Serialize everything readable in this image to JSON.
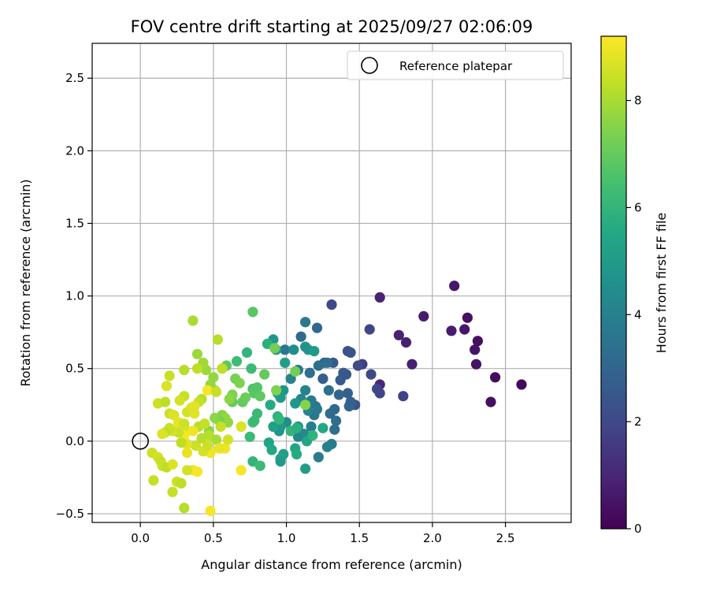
{
  "chart_data": {
    "type": "scatter",
    "title": "FOV centre drift starting at 2025/09/27 02:06:09",
    "xlabel": "Angular distance from reference (arcmin)",
    "ylabel": "Rotation from reference (arcmin)",
    "xlim": [
      -0.33,
      2.95
    ],
    "ylim": [
      -0.56,
      2.74
    ],
    "x_ticks": [
      "0.0",
      "0.5",
      "1.0",
      "1.5",
      "2.0",
      "2.5"
    ],
    "x_tick_values": [
      0,
      0.5,
      1.0,
      1.5,
      2.0,
      2.5
    ],
    "y_ticks": [
      "−0.5",
      "0.0",
      "0.5",
      "1.0",
      "1.5",
      "2.0",
      "2.5"
    ],
    "y_tick_values": [
      -0.5,
      0,
      0.5,
      1.0,
      1.5,
      2.0,
      2.5
    ],
    "grid": true,
    "colormap": "viridis",
    "colorbar": {
      "label": "Hours from first FF file",
      "range": [
        0,
        9.2
      ],
      "ticks": [
        "0",
        "2",
        "4",
        "6",
        "8"
      ],
      "tick_values": [
        0,
        2,
        4,
        6,
        8
      ]
    },
    "legend": {
      "placement": "top-right",
      "entries": [
        {
          "label": "Reference platepar",
          "marker": "open-circle"
        }
      ]
    },
    "reference_point": {
      "x": 0.0,
      "y": 0.0
    },
    "points": [
      {
        "x": 2.61,
        "y": 0.39,
        "h": 0.2
      },
      {
        "x": 2.43,
        "y": 0.44,
        "h": 0.3
      },
      {
        "x": 2.4,
        "y": 0.27,
        "h": 0.4
      },
      {
        "x": 2.31,
        "y": 0.69,
        "h": 0.4
      },
      {
        "x": 2.3,
        "y": 0.53,
        "h": 0.5
      },
      {
        "x": 2.29,
        "y": 0.63,
        "h": 0.5
      },
      {
        "x": 2.24,
        "y": 0.85,
        "h": 0.4
      },
      {
        "x": 2.22,
        "y": 0.77,
        "h": 0.6
      },
      {
        "x": 2.15,
        "y": 1.07,
        "h": 0.6
      },
      {
        "x": 2.13,
        "y": 0.76,
        "h": 0.7
      },
      {
        "x": 1.94,
        "y": 0.86,
        "h": 0.7
      },
      {
        "x": 1.86,
        "y": 0.53,
        "h": 0.8
      },
      {
        "x": 1.82,
        "y": 0.68,
        "h": 0.8
      },
      {
        "x": 1.77,
        "y": 0.73,
        "h": 0.9
      },
      {
        "x": 1.64,
        "y": 0.99,
        "h": 0.9
      },
      {
        "x": 1.64,
        "y": 0.39,
        "h": 1.0
      },
      {
        "x": 1.8,
        "y": 0.31,
        "h": 1.8
      },
      {
        "x": 1.64,
        "y": 0.33,
        "h": 1.9
      },
      {
        "x": 1.62,
        "y": 0.36,
        "h": 1.9
      },
      {
        "x": 1.57,
        "y": 0.77,
        "h": 1.9
      },
      {
        "x": 1.58,
        "y": 0.46,
        "h": 2.0
      },
      {
        "x": 1.52,
        "y": 0.53,
        "h": 1.7
      },
      {
        "x": 1.49,
        "y": 0.52,
        "h": 2.1
      },
      {
        "x": 1.47,
        "y": 0.25,
        "h": 2.3
      },
      {
        "x": 1.31,
        "y": 0.94,
        "h": 2.0
      },
      {
        "x": 1.42,
        "y": 0.62,
        "h": 2.4
      },
      {
        "x": 1.44,
        "y": 0.61,
        "h": 2.3
      },
      {
        "x": 1.37,
        "y": 0.42,
        "h": 2.6
      },
      {
        "x": 1.39,
        "y": 0.47,
        "h": 2.7
      },
      {
        "x": 1.41,
        "y": 0.46,
        "h": 2.5
      },
      {
        "x": 1.42,
        "y": 0.33,
        "h": 2.8
      },
      {
        "x": 1.43,
        "y": 0.24,
        "h": 3.0
      },
      {
        "x": 1.44,
        "y": 0.27,
        "h": 2.9
      },
      {
        "x": 1.36,
        "y": 0.32,
        "h": 3.0
      },
      {
        "x": 1.33,
        "y": 0.22,
        "h": 3.1
      },
      {
        "x": 1.34,
        "y": 0.14,
        "h": 3.3
      },
      {
        "x": 1.33,
        "y": 0.08,
        "h": 3.3
      },
      {
        "x": 1.3,
        "y": 0.19,
        "h": 3.2
      },
      {
        "x": 1.29,
        "y": 0.35,
        "h": 3.3
      },
      {
        "x": 1.32,
        "y": 0.54,
        "h": 2.6
      },
      {
        "x": 1.25,
        "y": 0.43,
        "h": 2.8
      },
      {
        "x": 1.26,
        "y": 0.54,
        "h": 2.9
      },
      {
        "x": 1.28,
        "y": 0.54,
        "h": 3.3
      },
      {
        "x": 1.22,
        "y": 0.52,
        "h": 3.4
      },
      {
        "x": 1.21,
        "y": 0.78,
        "h": 3.0
      },
      {
        "x": 1.13,
        "y": 0.82,
        "h": 3.7
      },
      {
        "x": 1.1,
        "y": 0.72,
        "h": 3.2
      },
      {
        "x": 1.2,
        "y": 0.24,
        "h": 3.5
      },
      {
        "x": 1.17,
        "y": 0.28,
        "h": 3.8
      },
      {
        "x": 1.19,
        "y": 0.18,
        "h": 3.6
      },
      {
        "x": 1.21,
        "y": 0.22,
        "h": 3.7
      },
      {
        "x": 1.17,
        "y": 0.1,
        "h": 3.9
      },
      {
        "x": 1.22,
        "y": -0.11,
        "h": 3.8
      },
      {
        "x": 1.31,
        "y": -0.02,
        "h": 3.7
      },
      {
        "x": 1.28,
        "y": -0.04,
        "h": 4.0
      },
      {
        "x": 1.13,
        "y": 0.35,
        "h": 4.1
      },
      {
        "x": 1.15,
        "y": 0.21,
        "h": 4.1
      },
      {
        "x": 1.12,
        "y": 0.05,
        "h": 4.3
      },
      {
        "x": 1.08,
        "y": 0.03,
        "h": 4.2
      },
      {
        "x": 1.16,
        "y": 0.47,
        "h": 3.3
      },
      {
        "x": 1.08,
        "y": 0.49,
        "h": 3.6
      },
      {
        "x": 1.1,
        "y": 0.29,
        "h": 4.2
      },
      {
        "x": 0.99,
        "y": 0.63,
        "h": 3.6
      },
      {
        "x": 1.05,
        "y": 0.63,
        "h": 4.5
      },
      {
        "x": 1.03,
        "y": 0.43,
        "h": 4.1
      },
      {
        "x": 1.0,
        "y": 0.13,
        "h": 4.4
      },
      {
        "x": 1.08,
        "y": 0.1,
        "h": 4.6
      },
      {
        "x": 1.06,
        "y": 0.26,
        "h": 4.8
      },
      {
        "x": 0.98,
        "y": 0.35,
        "h": 4.7
      },
      {
        "x": 0.93,
        "y": 0.63,
        "h": 4.9
      },
      {
        "x": 0.91,
        "y": 0.7,
        "h": 4.8
      },
      {
        "x": 1.13,
        "y": 0.65,
        "h": 4.7
      },
      {
        "x": 1.15,
        "y": 0.63,
        "h": 4.7
      },
      {
        "x": 1.19,
        "y": 0.62,
        "h": 5.0
      },
      {
        "x": 0.96,
        "y": 0.1,
        "h": 4.9
      },
      {
        "x": 0.95,
        "y": 0.07,
        "h": 4.8
      },
      {
        "x": 0.91,
        "y": 0.1,
        "h": 5.2
      },
      {
        "x": 0.94,
        "y": 0.33,
        "h": 5.0
      },
      {
        "x": 0.96,
        "y": 0.3,
        "h": 5.0
      },
      {
        "x": 0.99,
        "y": 0.54,
        "h": 5.1
      },
      {
        "x": 0.98,
        "y": -0.09,
        "h": 5.1
      },
      {
        "x": 0.96,
        "y": -0.12,
        "h": 5.3
      },
      {
        "x": 0.88,
        "y": -0.01,
        "h": 5.4
      },
      {
        "x": 0.96,
        "y": -0.14,
        "h": 5.0
      },
      {
        "x": 1.13,
        "y": -0.19,
        "h": 5.1
      },
      {
        "x": 1.06,
        "y": -0.05,
        "h": 5.4
      },
      {
        "x": 1.07,
        "y": -0.09,
        "h": 5.6
      },
      {
        "x": 1.14,
        "y": 0.0,
        "h": 5.4
      },
      {
        "x": 1.18,
        "y": 0.04,
        "h": 5.9
      },
      {
        "x": 1.25,
        "y": 0.09,
        "h": 5.5
      },
      {
        "x": 1.03,
        "y": 0.07,
        "h": 6.0
      },
      {
        "x": 1.07,
        "y": 0.09,
        "h": 5.8
      },
      {
        "x": 0.94,
        "y": 0.17,
        "h": 5.9
      },
      {
        "x": 0.95,
        "y": 0.15,
        "h": 6.0
      },
      {
        "x": 0.89,
        "y": 0.25,
        "h": 5.6
      },
      {
        "x": 0.87,
        "y": 0.67,
        "h": 5.8
      },
      {
        "x": 0.9,
        "y": -0.06,
        "h": 5.5
      },
      {
        "x": 0.77,
        "y": -0.14,
        "h": 6.0
      },
      {
        "x": 0.82,
        "y": -0.17,
        "h": 6.2
      },
      {
        "x": 0.75,
        "y": 0.03,
        "h": 6.2
      },
      {
        "x": 0.8,
        "y": 0.19,
        "h": 6.2
      },
      {
        "x": 0.77,
        "y": 0.13,
        "h": 6.4
      },
      {
        "x": 0.78,
        "y": 0.14,
        "h": 6.2
      },
      {
        "x": 0.73,
        "y": 0.61,
        "h": 6.0
      },
      {
        "x": 0.66,
        "y": 0.55,
        "h": 6.3
      },
      {
        "x": 0.77,
        "y": 0.89,
        "h": 6.8
      },
      {
        "x": 0.76,
        "y": 0.5,
        "h": 6.2
      },
      {
        "x": 0.77,
        "y": 0.36,
        "h": 6.6
      },
      {
        "x": 0.78,
        "y": 0.33,
        "h": 6.8
      },
      {
        "x": 0.8,
        "y": 0.37,
        "h": 6.7
      },
      {
        "x": 0.82,
        "y": 0.31,
        "h": 6.9
      },
      {
        "x": 0.85,
        "y": 0.46,
        "h": 7.0
      },
      {
        "x": 0.92,
        "y": 0.64,
        "h": 7.2
      },
      {
        "x": 1.06,
        "y": 0.48,
        "h": 7.2
      },
      {
        "x": 1.13,
        "y": 0.25,
        "h": 7.5
      },
      {
        "x": 0.93,
        "y": 0.35,
        "h": 7.4
      },
      {
        "x": 0.7,
        "y": 0.27,
        "h": 7.0
      },
      {
        "x": 0.72,
        "y": 0.3,
        "h": 7.1
      },
      {
        "x": 0.63,
        "y": 0.27,
        "h": 7.0
      },
      {
        "x": 0.59,
        "y": 0.52,
        "h": 6.9
      },
      {
        "x": 0.65,
        "y": 0.43,
        "h": 7.3
      },
      {
        "x": 0.68,
        "y": 0.4,
        "h": 7.4
      },
      {
        "x": 0.63,
        "y": 0.32,
        "h": 7.4
      },
      {
        "x": 0.61,
        "y": 0.29,
        "h": 7.6
      },
      {
        "x": 0.56,
        "y": 0.18,
        "h": 7.5
      },
      {
        "x": 0.58,
        "y": 0.16,
        "h": 7.7
      },
      {
        "x": 0.6,
        "y": 0.13,
        "h": 7.7
      },
      {
        "x": 0.54,
        "y": 0.14,
        "h": 7.3
      },
      {
        "x": 0.5,
        "y": 0.44,
        "h": 7.7
      },
      {
        "x": 0.45,
        "y": 0.49,
        "h": 7.8
      },
      {
        "x": 0.48,
        "y": 0.39,
        "h": 7.7
      },
      {
        "x": 0.51,
        "y": 0.35,
        "h": 7.8
      },
      {
        "x": 0.47,
        "y": 0.07,
        "h": 7.6
      },
      {
        "x": 0.51,
        "y": 0.16,
        "h": 7.6
      },
      {
        "x": 0.53,
        "y": 0.7,
        "h": 8.2
      },
      {
        "x": 0.36,
        "y": 0.83,
        "h": 8.0
      },
      {
        "x": 0.39,
        "y": 0.6,
        "h": 7.8
      },
      {
        "x": 0.43,
        "y": 0.54,
        "h": 7.9
      },
      {
        "x": 0.39,
        "y": 0.5,
        "h": 8.3
      },
      {
        "x": 0.3,
        "y": 0.49,
        "h": 8.2
      },
      {
        "x": 0.2,
        "y": 0.45,
        "h": 8.4
      },
      {
        "x": 0.18,
        "y": 0.38,
        "h": 8.7
      },
      {
        "x": 0.46,
        "y": 0.35,
        "h": 9.1
      },
      {
        "x": 0.42,
        "y": 0.29,
        "h": 8.2
      },
      {
        "x": 0.4,
        "y": 0.27,
        "h": 8.4
      },
      {
        "x": 0.3,
        "y": 0.31,
        "h": 8.4
      },
      {
        "x": 0.27,
        "y": 0.28,
        "h": 8.6
      },
      {
        "x": 0.12,
        "y": 0.26,
        "h": 8.5
      },
      {
        "x": 0.17,
        "y": 0.27,
        "h": 8.3
      },
      {
        "x": 0.32,
        "y": 0.2,
        "h": 8.6
      },
      {
        "x": 0.35,
        "y": 0.23,
        "h": 8.7
      },
      {
        "x": 0.37,
        "y": 0.24,
        "h": 8.8
      },
      {
        "x": 0.37,
        "y": 0.19,
        "h": 8.8
      },
      {
        "x": 0.2,
        "y": 0.19,
        "h": 8.5
      },
      {
        "x": 0.23,
        "y": 0.18,
        "h": 8.7
      },
      {
        "x": 0.26,
        "y": 0.13,
        "h": 8.9
      },
      {
        "x": 0.3,
        "y": 0.12,
        "h": 8.5
      },
      {
        "x": 0.32,
        "y": 0.07,
        "h": 8.6
      },
      {
        "x": 0.4,
        "y": 0.1,
        "h": 8.2
      },
      {
        "x": 0.44,
        "y": 0.12,
        "h": 8.4
      },
      {
        "x": 0.47,
        "y": 0.04,
        "h": 8.2
      },
      {
        "x": 0.52,
        "y": 0.01,
        "h": 8.0
      },
      {
        "x": 0.55,
        "y": -0.05,
        "h": 9.1
      },
      {
        "x": 0.58,
        "y": -0.05,
        "h": 9.0
      },
      {
        "x": 0.48,
        "y": -0.08,
        "h": 9.0
      },
      {
        "x": 0.43,
        "y": -0.07,
        "h": 8.6
      },
      {
        "x": 0.38,
        "y": -0.03,
        "h": 8.5
      },
      {
        "x": 0.36,
        "y": 0.07,
        "h": 9.0
      },
      {
        "x": 0.3,
        "y": 0.04,
        "h": 9.1
      },
      {
        "x": 0.32,
        "y": -0.02,
        "h": 8.8
      },
      {
        "x": 0.28,
        "y": -0.01,
        "h": 8.3
      },
      {
        "x": 0.26,
        "y": 0.06,
        "h": 8.4
      },
      {
        "x": 0.22,
        "y": 0.07,
        "h": 8.6
      },
      {
        "x": 0.2,
        "y": 0.09,
        "h": 8.5
      },
      {
        "x": 0.17,
        "y": 0.06,
        "h": 8.3
      },
      {
        "x": 0.15,
        "y": 0.05,
        "h": 8.7
      },
      {
        "x": 0.08,
        "y": -0.08,
        "h": 8.5
      },
      {
        "x": 0.12,
        "y": -0.11,
        "h": 8.6
      },
      {
        "x": 0.14,
        "y": -0.14,
        "h": 8.4
      },
      {
        "x": 0.15,
        "y": -0.17,
        "h": 8.5
      },
      {
        "x": 0.18,
        "y": -0.18,
        "h": 8.3
      },
      {
        "x": 0.22,
        "y": -0.16,
        "h": 8.7
      },
      {
        "x": 0.32,
        "y": -0.08,
        "h": 8.9
      },
      {
        "x": 0.36,
        "y": -0.2,
        "h": 9.0
      },
      {
        "x": 0.39,
        "y": -0.21,
        "h": 9.1
      },
      {
        "x": 0.32,
        "y": -0.2,
        "h": 8.6
      },
      {
        "x": 0.25,
        "y": -0.28,
        "h": 8.5
      },
      {
        "x": 0.28,
        "y": -0.29,
        "h": 8.3
      },
      {
        "x": 0.22,
        "y": -0.35,
        "h": 8.4
      },
      {
        "x": 0.09,
        "y": -0.27,
        "h": 8.4
      },
      {
        "x": 0.3,
        "y": -0.46,
        "h": 8.2
      },
      {
        "x": 0.48,
        "y": -0.48,
        "h": 9.1
      },
      {
        "x": 0.69,
        "y": -0.2,
        "h": 9.1
      },
      {
        "x": 0.69,
        "y": 0.1,
        "h": 8.7
      },
      {
        "x": 0.55,
        "y": 0.1,
        "h": 8.4
      },
      {
        "x": 0.6,
        "y": 0.01,
        "h": 8.6
      },
      {
        "x": 0.54,
        "y": -0.05,
        "h": 8.9
      },
      {
        "x": 0.42,
        "y": 0.02,
        "h": 8.2
      },
      {
        "x": 0.46,
        "y": -0.03,
        "h": 8.5
      },
      {
        "x": 0.52,
        "y": 0.34,
        "h": 8.4
      },
      {
        "x": 0.56,
        "y": 0.5,
        "h": 8.3
      }
    ]
  }
}
